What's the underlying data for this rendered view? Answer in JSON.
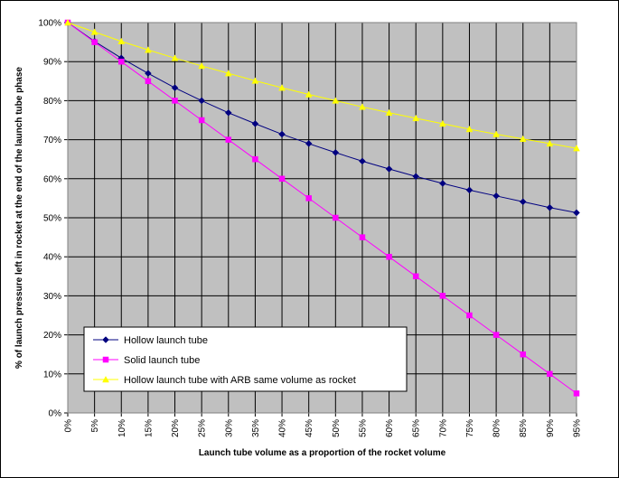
{
  "chart_data": {
    "type": "line",
    "title": "",
    "xlabel": "Launch tube volume as a proportion of the rocket volume",
    "ylabel": "% of launch pressure left in rocket at the end of the launch tube phase",
    "x_tick_labels": [
      "0%",
      "5%",
      "10%",
      "15%",
      "20%",
      "25%",
      "30%",
      "35%",
      "40%",
      "45%",
      "50%",
      "55%",
      "60%",
      "65%",
      "70%",
      "75%",
      "80%",
      "85%",
      "90%",
      "95%"
    ],
    "y_tick_labels": [
      "0%",
      "10%",
      "20%",
      "30%",
      "40%",
      "50%",
      "60%",
      "70%",
      "80%",
      "90%",
      "100%"
    ],
    "x": [
      0,
      5,
      10,
      15,
      20,
      25,
      30,
      35,
      40,
      45,
      50,
      55,
      60,
      65,
      70,
      75,
      80,
      85,
      90,
      95
    ],
    "xlim": [
      0,
      95
    ],
    "ylim": [
      0,
      100
    ],
    "grid": true,
    "plot_background": "#c0c0c0",
    "legend_position": "bottom-left",
    "series": [
      {
        "name": "Hollow launch tube",
        "color": "#000080",
        "marker": "diamond",
        "values": [
          100,
          95.2,
          90.9,
          87.0,
          83.3,
          80.0,
          76.9,
          74.1,
          71.4,
          69.0,
          66.7,
          64.5,
          62.5,
          60.6,
          58.8,
          57.1,
          55.6,
          54.1,
          52.6,
          51.3
        ]
      },
      {
        "name": "Solid launch tube",
        "color": "#ff00ff",
        "marker": "square",
        "values": [
          100,
          95,
          90,
          85,
          80,
          75,
          70,
          65,
          60,
          55,
          50,
          45,
          40,
          35,
          30,
          25,
          20,
          15,
          10,
          5
        ]
      },
      {
        "name": "Hollow launch tube with ARB same volume as rocket",
        "color": "#ffff00",
        "marker": "triangle",
        "values": [
          100,
          97.6,
          95.2,
          93.0,
          90.9,
          88.9,
          87.0,
          85.1,
          83.3,
          81.6,
          80.0,
          78.4,
          76.9,
          75.5,
          74.1,
          72.7,
          71.4,
          70.2,
          69.0,
          67.8
        ]
      }
    ]
  }
}
